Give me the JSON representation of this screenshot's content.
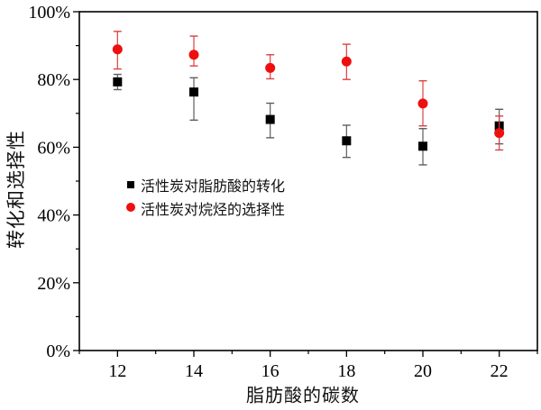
{
  "chart_data": {
    "type": "scatter",
    "title": "",
    "xlabel": "脂肪酸的碳数",
    "ylabel": "转化和选择性",
    "xlim": [
      11,
      23
    ],
    "ylim": [
      0,
      100
    ],
    "x_ticks": [
      12,
      14,
      16,
      18,
      20,
      22
    ],
    "x_minor_ticks": [
      11,
      13,
      15,
      17,
      19,
      21,
      23
    ],
    "y_ticks": [
      0,
      20,
      40,
      60,
      80,
      100
    ],
    "y_tick_labels": [
      "0%",
      "20%",
      "40%",
      "60%",
      "80%",
      "100%"
    ],
    "y_minor_ticks": [
      10,
      30,
      50,
      70,
      90
    ],
    "grid": false,
    "legend_position": "inside-left-middle",
    "series": [
      {
        "name": "活性炭对脂肪酸的转化",
        "marker": "square",
        "color": "#000000",
        "errorbar_color": "#5e5e5e",
        "x": [
          12,
          14,
          16,
          18,
          20,
          22
        ],
        "y": [
          79.3,
          76.3,
          68.2,
          61.9,
          60.3,
          66.3
        ],
        "y_err_high": [
          81.5,
          80.5,
          73.0,
          66.5,
          65.5,
          71.2
        ],
        "y_err_low": [
          77.0,
          68.0,
          62.8,
          57.0,
          54.8,
          61.0
        ]
      },
      {
        "name": "活性炭对烷烃的选择性",
        "marker": "circle",
        "color": "#ee0f0f",
        "errorbar_color": "#dd4040",
        "x": [
          12,
          14,
          16,
          18,
          20,
          22
        ],
        "y": [
          88.9,
          87.3,
          83.4,
          85.3,
          72.9,
          64.2
        ],
        "y_err_high": [
          94.2,
          92.8,
          87.3,
          90.4,
          79.6,
          69.2
        ],
        "y_err_low": [
          83.1,
          84.0,
          80.2,
          80.0,
          66.3,
          59.2
        ]
      }
    ]
  }
}
